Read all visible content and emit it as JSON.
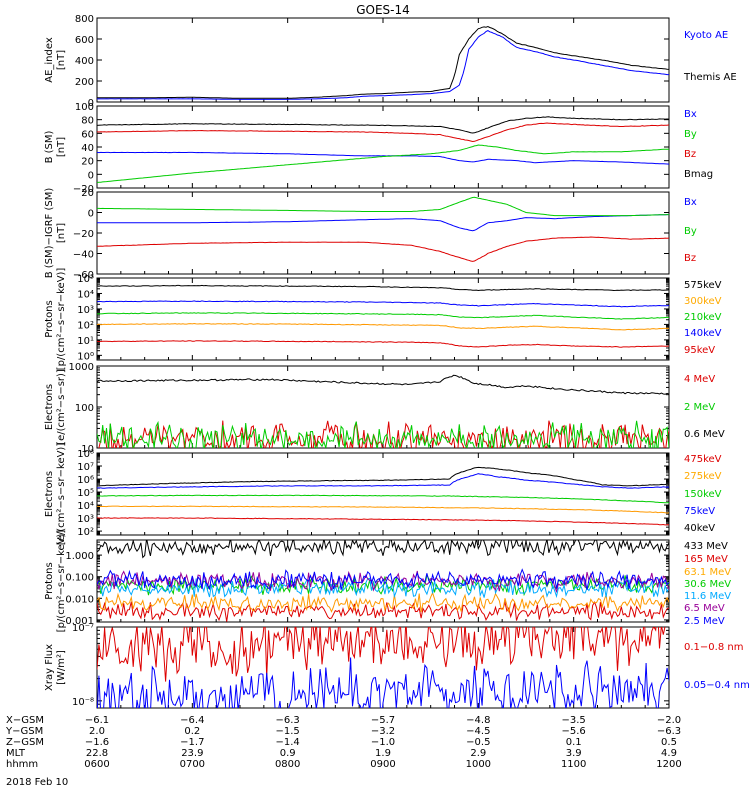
{
  "title": "GOES-14",
  "date_label": "2018 Feb 10",
  "chart_data": [
    {
      "type": "line",
      "ylabel": "AE_index\n[nT]",
      "ylim": [
        0,
        800
      ],
      "log": false,
      "yticks": [
        0,
        200,
        400,
        600,
        800
      ],
      "tick_labels": [
        "0",
        "200",
        "400",
        "600",
        "800"
      ],
      "series": [
        {
          "name": "Kyoto AE",
          "color": "#0000ff",
          "x": [
            6,
            6.5,
            7,
            7.5,
            8,
            8.3,
            8.6,
            8.8,
            9,
            9.3,
            9.5,
            9.7,
            9.8,
            9.85,
            9.9,
            10,
            10.1,
            10.25,
            10.4,
            10.6,
            10.8,
            11,
            11.3,
            11.6,
            12
          ],
          "y": [
            30,
            30,
            30,
            25,
            25,
            30,
            40,
            55,
            60,
            70,
            80,
            100,
            160,
            300,
            500,
            620,
            680,
            620,
            520,
            480,
            430,
            400,
            350,
            300,
            260
          ]
        },
        {
          "name": "Themis AE",
          "color": "#000000",
          "x": [
            6,
            6.5,
            7,
            7.5,
            8,
            8.3,
            8.6,
            8.8,
            9,
            9.3,
            9.5,
            9.7,
            9.75,
            9.8,
            9.9,
            10,
            10.1,
            10.25,
            10.4,
            10.6,
            10.8,
            11,
            11.3,
            11.6,
            12
          ],
          "y": [
            40,
            40,
            45,
            35,
            35,
            45,
            60,
            75,
            80,
            95,
            100,
            130,
            250,
            450,
            600,
            700,
            720,
            650,
            560,
            520,
            470,
            440,
            400,
            350,
            310
          ]
        }
      ]
    },
    {
      "type": "line",
      "ylabel": "B (SM)\n[nT]",
      "ylim": [
        -20,
        100
      ],
      "log": false,
      "yticks": [
        -20,
        0,
        20,
        40,
        60,
        80,
        100
      ],
      "tick_labels": [
        "−20",
        "0",
        "20",
        "40",
        "60",
        "80",
        "100"
      ],
      "series": [
        {
          "name": "Bx",
          "color": "#0000ff",
          "x": [
            6,
            7,
            8,
            8.8,
            9.3,
            9.6,
            9.8,
            9.95,
            10.1,
            10.4,
            10.6,
            11,
            11.5,
            12
          ],
          "y": [
            32,
            32,
            30,
            27,
            27,
            26,
            20,
            18,
            22,
            20,
            17,
            20,
            18,
            15
          ]
        },
        {
          "name": "By",
          "color": "#00cc00",
          "x": [
            6,
            6.5,
            7,
            7.5,
            8,
            8.5,
            9,
            9.5,
            9.8,
            10,
            10.2,
            10.4,
            10.7,
            11,
            11.5,
            12
          ],
          "y": [
            -12,
            -5,
            2,
            8,
            14,
            20,
            26,
            30,
            35,
            43,
            40,
            35,
            30,
            33,
            33,
            37
          ]
        },
        {
          "name": "Bz",
          "color": "#dd0000",
          "x": [
            6,
            7,
            8,
            8.8,
            9.3,
            9.6,
            9.8,
            9.95,
            10.1,
            10.3,
            10.5,
            10.7,
            11,
            11.5,
            12
          ],
          "y": [
            62,
            64,
            63,
            62,
            60,
            58,
            52,
            48,
            55,
            65,
            72,
            75,
            73,
            70,
            72
          ]
        },
        {
          "name": "Bmag",
          "color": "#000000",
          "x": [
            6,
            7,
            8,
            8.8,
            9.3,
            9.6,
            9.8,
            9.95,
            10.1,
            10.3,
            10.5,
            10.7,
            11,
            11.5,
            12
          ],
          "y": [
            72,
            74,
            73,
            72,
            71,
            70,
            65,
            60,
            68,
            78,
            82,
            84,
            82,
            80,
            81
          ]
        }
      ]
    },
    {
      "type": "line",
      "ylabel": "B (SM)−IGRF (SM)\n[nT]",
      "ylim": [
        -60,
        20
      ],
      "log": false,
      "yticks": [
        -60,
        -40,
        -20,
        0,
        20
      ],
      "tick_labels": [
        "−60",
        "−40",
        "−20",
        "0",
        "20"
      ],
      "series": [
        {
          "name": "Bx",
          "color": "#0000ff",
          "x": [
            6,
            7,
            8,
            8.8,
            9.3,
            9.6,
            9.8,
            9.95,
            10.1,
            10.3,
            10.5,
            10.8,
            11.2,
            11.6,
            12
          ],
          "y": [
            -10,
            -10,
            -9,
            -7,
            -6,
            -8,
            -15,
            -18,
            -10,
            -8,
            -5,
            -6,
            -4,
            -3,
            -2
          ]
        },
        {
          "name": "By",
          "color": "#00cc00",
          "x": [
            6,
            7,
            8,
            8.8,
            9.3,
            9.6,
            9.8,
            9.95,
            10.1,
            10.3,
            10.5,
            10.8,
            11.2,
            11.6,
            12
          ],
          "y": [
            4,
            3,
            2,
            1,
            1,
            3,
            10,
            15,
            12,
            8,
            0,
            -3,
            -3,
            -3,
            -2
          ]
        },
        {
          "name": "Bz",
          "color": "#dd0000",
          "x": [
            6,
            7,
            8,
            8.8,
            9.3,
            9.6,
            9.8,
            9.95,
            10.1,
            10.3,
            10.5,
            10.8,
            11.2,
            11.6,
            12
          ],
          "y": [
            -33,
            -30,
            -29,
            -29,
            -32,
            -38,
            -44,
            -48,
            -40,
            -33,
            -28,
            -25,
            -24,
            -26,
            -25
          ]
        }
      ]
    },
    {
      "type": "line",
      "ylabel": "Protons\n[p/(cm²−s−sr−keV)]",
      "ylim": [
        0.5,
        100000
      ],
      "log": true,
      "yticks": [
        1,
        10,
        100,
        1000,
        10000,
        100000
      ],
      "tick_labels": [
        "10⁰",
        "10¹",
        "10²",
        "10³",
        "10⁴",
        "10⁵"
      ],
      "series": [
        {
          "name": "575keV",
          "color": "#000000",
          "x": [
            6,
            7,
            8,
            8.8,
            9.3,
            9.6,
            9.8,
            10,
            10.3,
            10.6,
            11,
            11.5,
            12
          ],
          "y": [
            30000,
            32000,
            30000,
            28000,
            25000,
            23000,
            18000,
            16000,
            18000,
            20000,
            18000,
            16000,
            17000
          ]
        },
        {
          "name": "300keV",
          "color": "#ff9900",
          "x": [
            6,
            7,
            8,
            8.8,
            9.3,
            9.6,
            9.8,
            10,
            10.3,
            10.6,
            11,
            11.5,
            12
          ],
          "y": [
            100,
            110,
            105,
            95,
            90,
            85,
            60,
            55,
            65,
            75,
            60,
            45,
            55
          ]
        },
        {
          "name": "210keV",
          "color": "#00cc00",
          "x": [
            6,
            7,
            8,
            8.8,
            9.3,
            9.6,
            9.8,
            10,
            10.3,
            10.6,
            11,
            11.5,
            12
          ],
          "y": [
            500,
            550,
            520,
            480,
            450,
            420,
            300,
            270,
            320,
            380,
            300,
            220,
            280
          ]
        },
        {
          "name": "140keV",
          "color": "#0000ff",
          "x": [
            6,
            7,
            8,
            8.8,
            9.3,
            9.6,
            9.8,
            10,
            10.3,
            10.6,
            11,
            11.5,
            12
          ],
          "y": [
            3000,
            3200,
            3000,
            2800,
            2600,
            2400,
            1800,
            1600,
            1900,
            2200,
            1800,
            1400,
            1700
          ]
        },
        {
          "name": "95keV",
          "color": "#dd0000",
          "x": [
            6,
            7,
            8,
            8.8,
            9.3,
            9.6,
            9.8,
            10,
            10.3,
            10.6,
            11,
            11.5,
            12
          ],
          "y": [
            8,
            8.5,
            8,
            7.5,
            7,
            6.5,
            4,
            3.5,
            4.5,
            5,
            4,
            3.5,
            4
          ]
        }
      ]
    },
    {
      "type": "line",
      "ylabel": "Electrons\n[e/(cm²−s−sr)]",
      "ylim": [
        10,
        1000
      ],
      "log": true,
      "yticks": [
        10,
        100,
        1000
      ],
      "tick_labels": [
        "10",
        "100",
        "1000"
      ],
      "series": [
        {
          "name": "4 MeV",
          "color": "#dd0000",
          "noise": true,
          "x": [
            6,
            12
          ],
          "y": [
            17,
            17
          ]
        },
        {
          "name": "2 MeV",
          "color": "#00cc00",
          "noise": true,
          "x": [
            6,
            12
          ],
          "y": [
            17,
            17
          ]
        },
        {
          "name": "0.6 MeV",
          "color": "#000000",
          "x": [
            6,
            7,
            7.8,
            8.3,
            8.8,
            9.3,
            9.6,
            9.75,
            9.85,
            9.95,
            10.1,
            10.3,
            10.5,
            10.8,
            11,
            11.5,
            12
          ],
          "y": [
            430,
            450,
            470,
            420,
            380,
            350,
            420,
            600,
            500,
            380,
            350,
            300,
            330,
            280,
            260,
            220,
            210
          ]
        }
      ]
    },
    {
      "type": "line",
      "ylabel": "Electrons\n[e/(cm²−s−sr−keV)]",
      "ylim": [
        50,
        100000000
      ],
      "log": true,
      "yticks": [
        100,
        1000,
        10000,
        100000,
        1000000,
        10000000,
        100000000
      ],
      "tick_labels": [
        "10²",
        "10³",
        "10⁴",
        "10⁵",
        "10⁶",
        "10⁷",
        "10⁸"
      ],
      "series": [
        {
          "name": "475keV",
          "color": "#dd0000",
          "x": [
            6,
            7,
            8,
            9,
            10,
            11,
            12
          ],
          "y": [
            1000,
            1000,
            900,
            800,
            700,
            500,
            300
          ]
        },
        {
          "name": "275keV",
          "color": "#ff9900",
          "x": [
            6,
            7,
            8,
            9,
            10,
            11,
            12
          ],
          "y": [
            8000,
            8000,
            7500,
            7000,
            6000,
            4500,
            2500
          ]
        },
        {
          "name": "150keV",
          "color": "#00cc00",
          "x": [
            6,
            7,
            8,
            9,
            9.6,
            10,
            10.5,
            11,
            11.5,
            12
          ],
          "y": [
            50000,
            55000,
            55000,
            52000,
            50000,
            45000,
            38000,
            30000,
            22000,
            15000
          ]
        },
        {
          "name": "75keV",
          "color": "#0000ff",
          "x": [
            6,
            7,
            8,
            9,
            9.7,
            9.9,
            10,
            10.2,
            10.5,
            11,
            11.3,
            11.6,
            12
          ],
          "y": [
            200000,
            250000,
            300000,
            300000,
            350000,
            1500000,
            2500000,
            1500000,
            800000,
            400000,
            250000,
            200000,
            250000
          ]
        },
        {
          "name": "40keV",
          "color": "#000000",
          "x": [
            6,
            7,
            8,
            9,
            9.7,
            9.9,
            10,
            10.2,
            10.5,
            11,
            11.3,
            11.6,
            12
          ],
          "y": [
            300000,
            500000,
            700000,
            800000,
            1000000,
            5000000,
            8000000,
            6000000,
            3000000,
            900000,
            350000,
            300000,
            400000
          ]
        }
      ]
    },
    {
      "type": "line",
      "ylabel": "Protons\n[p/(cm²−s−sr−keV)]",
      "ylim": [
        0.0008,
        5
      ],
      "log": true,
      "yticks": [
        0.001,
        0.01,
        0.1,
        1
      ],
      "tick_labels": [
        "0.001",
        "0.010",
        "0.100",
        "1.000"
      ],
      "series": [
        {
          "name": "433 MeV",
          "color": "#000000",
          "noise": true,
          "x": [
            6,
            12
          ],
          "y": [
            2.2,
            2.8
          ]
        },
        {
          "name": "165 MeV",
          "color": "#dd0000",
          "noise": true,
          "x": [
            6,
            12
          ],
          "y": [
            0.0025,
            0.0025
          ]
        },
        {
          "name": "63.1 MeV",
          "color": "#ff9900",
          "noise": true,
          "x": [
            6,
            12
          ],
          "y": [
            0.006,
            0.006
          ]
        },
        {
          "name": "30.6 MeV",
          "color": "#00cc00",
          "noise": true,
          "x": [
            6,
            12
          ],
          "y": [
            0.04,
            0.04
          ]
        },
        {
          "name": "11.6 MeV",
          "color": "#00aaff",
          "noise": true,
          "x": [
            6,
            12
          ],
          "y": [
            0.03,
            0.03
          ]
        },
        {
          "name": "6.5 MeV",
          "color": "#990099",
          "noise": true,
          "x": [
            6,
            12
          ],
          "y": [
            0.06,
            0.06
          ]
        },
        {
          "name": "2.5 MeV",
          "color": "#0000ff",
          "noise": true,
          "x": [
            6,
            12
          ],
          "y": [
            0.07,
            0.07
          ]
        }
      ]
    },
    {
      "type": "line",
      "ylabel": "Xray Flux\n[W/m²]",
      "ylim": [
        8e-09,
        1e-07
      ],
      "log": true,
      "yticks": [
        1e-08,
        1e-07
      ],
      "tick_labels": [
        "10⁻⁸",
        "10⁻⁷"
      ],
      "series": [
        {
          "name": "0.1−0.8 nm",
          "color": "#dd0000",
          "noise": true,
          "x": [
            6,
            6.5,
            7,
            7.5,
            8,
            8.5,
            9,
            9.5,
            10,
            10.5,
            11,
            11.5,
            12
          ],
          "y": [
            5.5e-08,
            5e-08,
            5.5e-08,
            5e-08,
            5.5e-08,
            6e-08,
            6e-08,
            6.5e-08,
            6.5e-08,
            7e-08,
            7e-08,
            7.5e-08,
            8e-08
          ]
        },
        {
          "name": "0.05−0.4 nm",
          "color": "#0000ff",
          "noise": true,
          "x": [
            6,
            6.5,
            7,
            7.5,
            8,
            8.5,
            9,
            9.5,
            10,
            10.5,
            11,
            11.5,
            12
          ],
          "y": [
            1.05e-08,
            1.1e-08,
            1.1e-08,
            1.2e-08,
            1.25e-08,
            1.3e-08,
            1.35e-08,
            1.35e-08,
            1.4e-08,
            1.4e-08,
            1.5e-08,
            1.5e-08,
            1.6e-08
          ]
        }
      ]
    }
  ],
  "x_axis": {
    "range": [
      6,
      12
    ],
    "hours": [
      6,
      7,
      8,
      9,
      10,
      11,
      12
    ],
    "rows": [
      {
        "label": "X−GSM",
        "values": [
          "−6.1",
          "−6.4",
          "−6.3",
          "−5.7",
          "−4.8",
          "−3.5",
          "−2.0"
        ]
      },
      {
        "label": "Y−GSM",
        "values": [
          "2.0",
          "0.2",
          "−1.5",
          "−3.2",
          "−4.5",
          "−5.6",
          "−6.3"
        ]
      },
      {
        "label": "Z−GSM",
        "values": [
          "−1.6",
          "−1.7",
          "−1.4",
          "−1.0",
          "−0.5",
          "0.1",
          "0.5"
        ]
      },
      {
        "label": "MLT",
        "values": [
          "22.8",
          "23.9",
          "0.9",
          "1.9",
          "2.9",
          "3.9",
          "4.9"
        ]
      },
      {
        "label": "hhmm",
        "values": [
          "0600",
          "0700",
          "0800",
          "0900",
          "1000",
          "1100",
          "1200"
        ]
      }
    ]
  }
}
